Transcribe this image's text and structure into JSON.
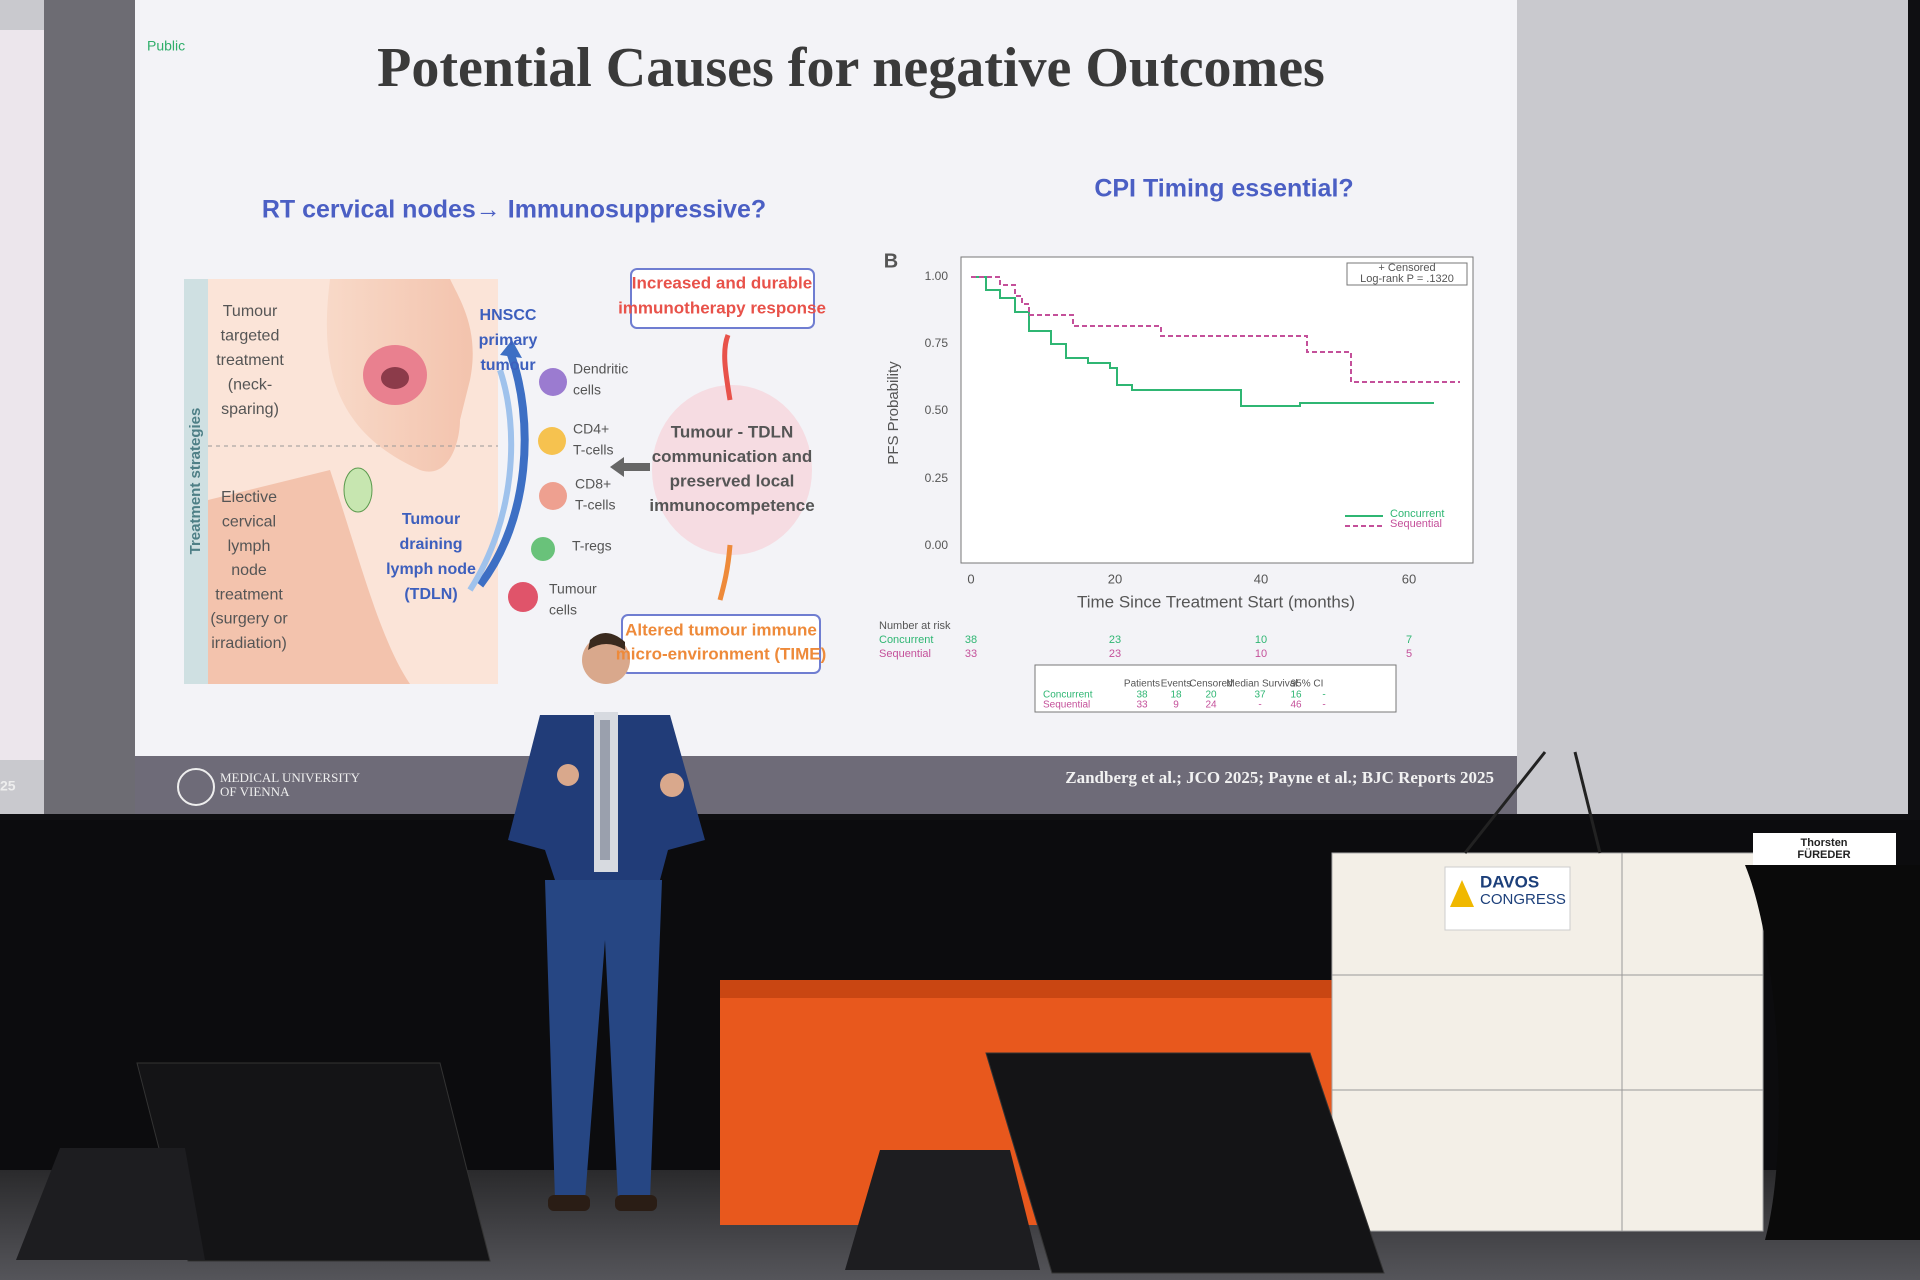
{
  "slide": {
    "label": "Public",
    "title": "Potential Causes for negative Outcomes",
    "left": {
      "heading": "RT cervical nodes→ Immunosuppressive?",
      "band_label": "Treatment strategies",
      "strategy_top": [
        "Tumour",
        "targeted",
        "treatment",
        "(neck-",
        "sparing)"
      ],
      "strategy_bottom": [
        "Elective",
        "cervical",
        "lymph",
        "node",
        "treatment",
        "(surgery or",
        "irradiation)"
      ],
      "primary": [
        "HNSCC",
        "primary",
        "tumour"
      ],
      "tdln": [
        "Tumour",
        "draining",
        "lymph node",
        "(TDLN)"
      ],
      "cells": [
        [
          "Dendritic",
          "cells"
        ],
        [
          "CD4+",
          "T-cells"
        ],
        [
          "CD8+",
          "T-cells"
        ],
        [
          "T-regs"
        ],
        [
          "Tumour",
          "cells"
        ]
      ],
      "center": [
        "Tumour - TDLN",
        "communication and",
        "preserved local",
        "immunocompetence"
      ],
      "top_box": [
        "Increased and durable",
        "immunotherapy response"
      ],
      "bottom_box": [
        "Altered tumour immune",
        "micro-environment (TIME)"
      ]
    },
    "right": {
      "heading": "CPI Timing essential?",
      "panel": "B",
      "censor_note": "+ Censored",
      "logrank": "Log-rank P = .1320",
      "yticks": [
        "1.00",
        "0.75",
        "0.50",
        "0.25",
        "0.00"
      ],
      "xticks": [
        "0",
        "20",
        "40",
        "60"
      ],
      "y_label": "PFS Probability",
      "x_label": "Time Since Treatment Start (months)",
      "legend": [
        "Concurrent",
        "Sequential"
      ],
      "risk": {
        "title": "Number at risk",
        "rows": [
          {
            "name": "Concurrent",
            "values": [
              "38",
              "23",
              "10",
              "7"
            ]
          },
          {
            "name": "Sequential",
            "values": [
              "33",
              "23",
              "10",
              "5"
            ]
          }
        ]
      },
      "summary": {
        "headers": [
          "Patients",
          "Events",
          "Censored",
          "Median Survival",
          "95% CI"
        ],
        "rows": [
          {
            "name": "Concurrent",
            "values": [
              "38",
              "18",
              "20",
              "37",
              "16",
              "-"
            ]
          },
          {
            "name": "Sequential",
            "values": [
              "33",
              "9",
              "24",
              "-",
              "46",
              "-"
            ]
          }
        ]
      }
    },
    "footer": {
      "institution": [
        "MEDICAL UNIVERSITY",
        "OF VIENNA"
      ],
      "citation": "Zandberg  et al.; JCO 2025; Payne et al.; BJC Reports 2025",
      "page": "25"
    }
  },
  "stage": {
    "podium_sign": [
      "DAVOS",
      "CONGRESS"
    ],
    "nameplate": [
      "Thorsten",
      "FÜREDER"
    ]
  }
}
